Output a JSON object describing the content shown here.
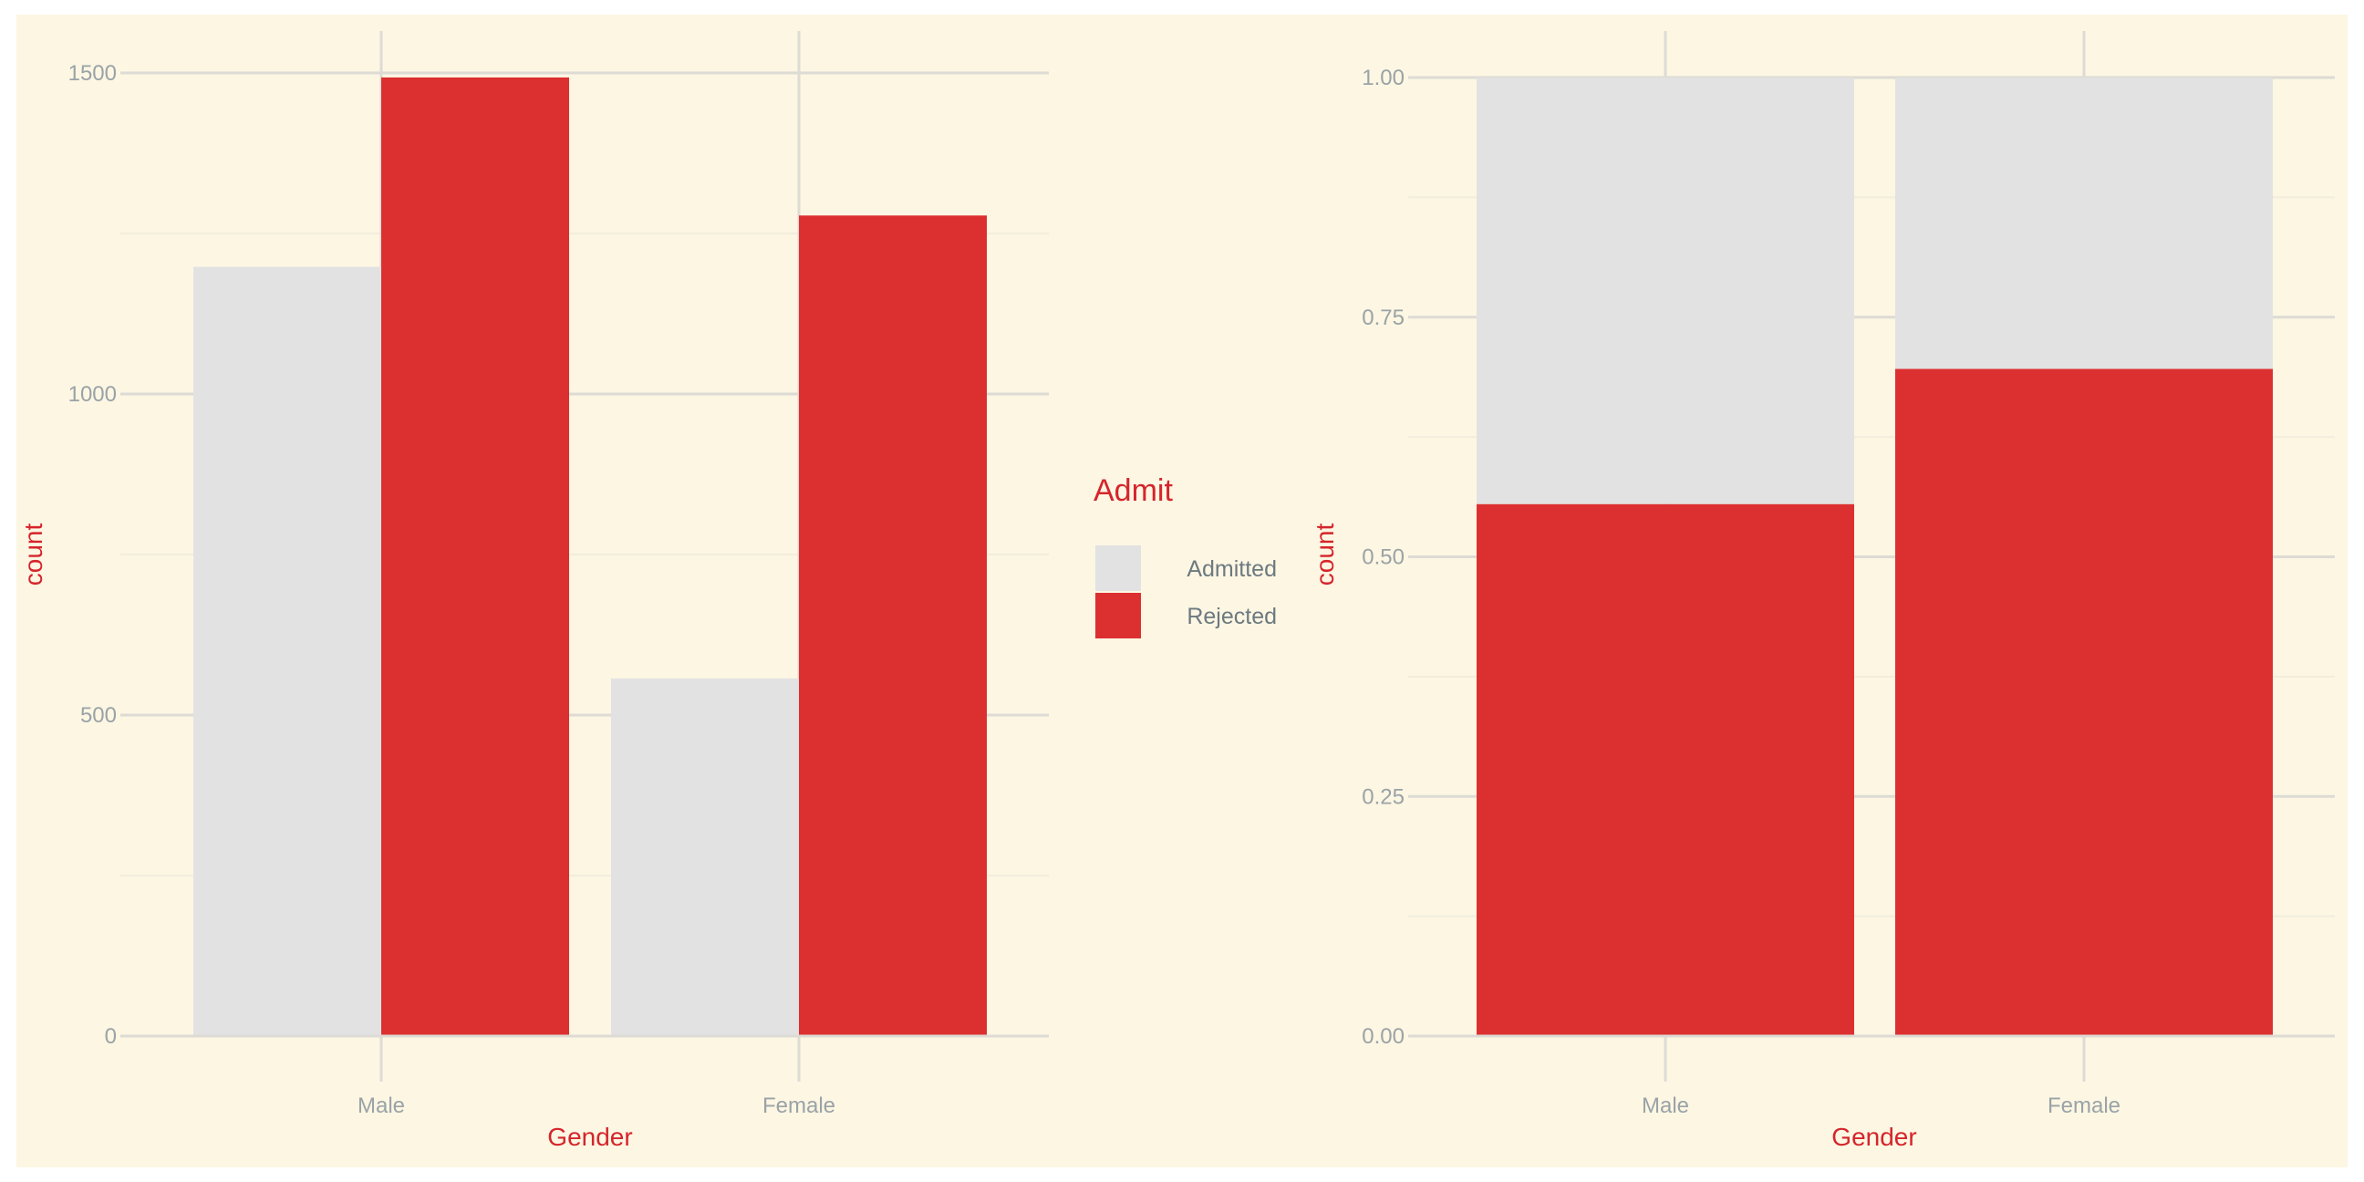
{
  "chart_data": [
    {
      "type": "bar",
      "position": "dodge",
      "categories": [
        "Male",
        "Female"
      ],
      "series": [
        {
          "name": "Admitted",
          "values": [
            1198,
            557
          ]
        },
        {
          "name": "Rejected",
          "values": [
            1493,
            1278
          ]
        }
      ],
      "xlabel": "Gender",
      "ylabel": "count",
      "ylim": [
        0,
        1500
      ],
      "yticks": [
        0,
        500,
        1000,
        1500
      ],
      "ytick_labels": [
        "0",
        "500",
        "1000",
        "1500"
      ],
      "grid": true
    },
    {
      "type": "bar",
      "position": "fill",
      "categories": [
        "Male",
        "Female"
      ],
      "series": [
        {
          "name": "Admitted",
          "values": [
            0.445,
            0.304
          ]
        },
        {
          "name": "Rejected",
          "values": [
            0.555,
            0.696
          ]
        }
      ],
      "xlabel": "Gender",
      "ylabel": "count",
      "ylim": [
        0,
        1
      ],
      "yticks": [
        0,
        0.25,
        0.5,
        0.75,
        1
      ],
      "ytick_labels": [
        "0.00",
        "0.25",
        "0.50",
        "0.75",
        "1.00"
      ],
      "grid": true
    }
  ],
  "legend": {
    "title": "Admit",
    "placement": "between-panels",
    "items": [
      {
        "label": "Admitted",
        "color": "#e2e2e2"
      },
      {
        "label": "Rejected",
        "color": "#dc3030"
      }
    ]
  },
  "colors": {
    "background": "#fcf6e3",
    "grid_major": "#dddbd4",
    "grid_minor": "#f2eddc",
    "admitted": "#e2e2e2",
    "rejected": "#dc3030",
    "tick_text": "#9aa3a6",
    "title_text": "#d5252b",
    "legend_text": "#6c7a80"
  }
}
